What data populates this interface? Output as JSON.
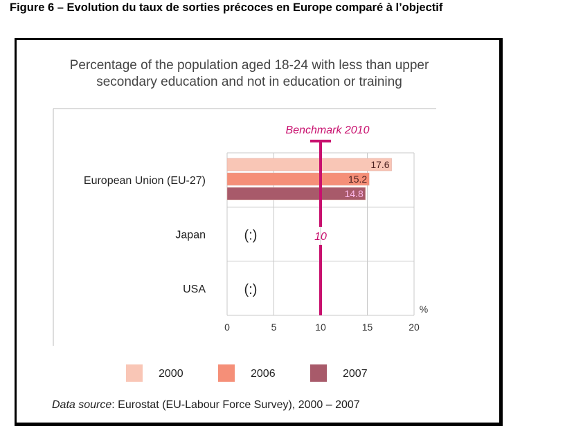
{
  "figure_title": "Figure 6 – Evolution du taux de sorties précoces en Europe comparé à l’objectif",
  "chart_data": {
    "type": "bar",
    "orientation": "horizontal",
    "title": "Percentage of the population aged 18-24 with less than upper secondary education and not in education or training",
    "title_lines": [
      "Percentage of the population aged 18-24 with less than upper",
      "secondary education and not in education or training"
    ],
    "categories": [
      "European Union (EU-27)",
      "Japan",
      "USA"
    ],
    "series": [
      {
        "name": "2000",
        "color": "#f9c6b6",
        "values": [
          17.6,
          null,
          null
        ],
        "labels": [
          "17.6",
          "",
          ""
        ]
      },
      {
        "name": "2006",
        "color": "#f58f78",
        "values": [
          15.2,
          null,
          null
        ],
        "labels": [
          "15.2",
          "",
          ""
        ]
      },
      {
        "name": "2007",
        "color": "#a85a6a",
        "values": [
          14.8,
          null,
          null
        ],
        "labels": [
          "14.8",
          "",
          ""
        ]
      }
    ],
    "missing_label": "(:)",
    "benchmark": {
      "label": "Benchmark 2010",
      "value": 10,
      "value_label": "10",
      "color": "#c8106e"
    },
    "xlim": [
      0,
      20
    ],
    "xticks": [
      "0",
      "5",
      "10",
      "15",
      "20"
    ],
    "xunit": "%",
    "grid": true,
    "legend_position": "bottom",
    "source_prefix": "Data source",
    "source_text": ": Eurostat (EU-Labour Force Survey), 2000 – 2007"
  }
}
